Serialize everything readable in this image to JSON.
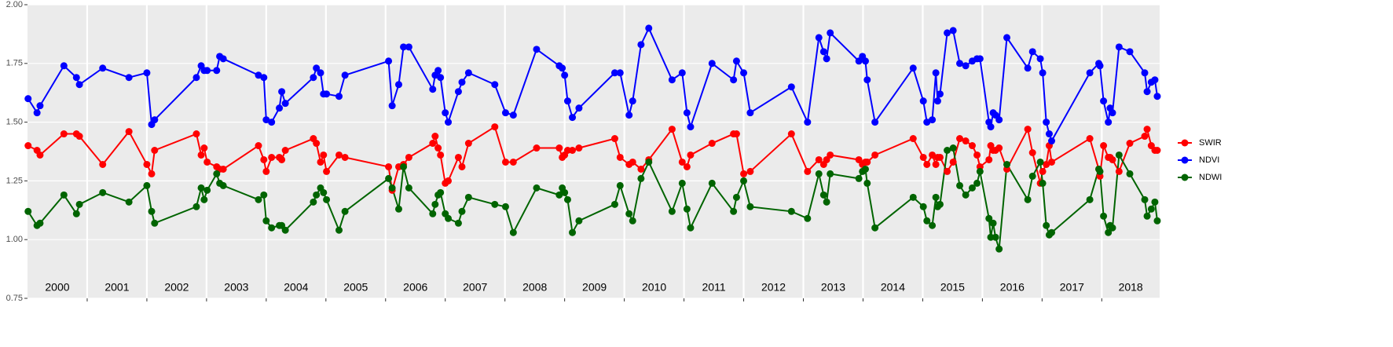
{
  "chart_data": {
    "type": "line",
    "x": [
      2000.01,
      2000.16,
      2000.21,
      2000.61,
      2000.82,
      2000.87,
      2001.26,
      2001.7,
      2002.0,
      2002.08,
      2002.13,
      2002.83,
      2002.91,
      2002.96,
      2003.01,
      2003.17,
      2003.22,
      2003.28,
      2003.87,
      2003.96,
      2004.0,
      2004.09,
      2004.22,
      2004.26,
      2004.32,
      2004.79,
      2004.84,
      2004.91,
      2004.96,
      2005.01,
      2005.22,
      2005.32,
      2006.05,
      2006.11,
      2006.22,
      2006.3,
      2006.39,
      2006.79,
      2006.83,
      2006.88,
      2006.92,
      2007.0,
      2007.05,
      2007.22,
      2007.28,
      2007.39,
      2007.83,
      2008.01,
      2008.14,
      2008.53,
      2008.91,
      2008.96,
      2009.0,
      2009.05,
      2009.13,
      2009.24,
      2009.84,
      2009.93,
      2010.08,
      2010.14,
      2010.28,
      2010.41,
      2010.8,
      2010.97,
      2011.05,
      2011.11,
      2011.47,
      2011.83,
      2011.88,
      2012.0,
      2012.11,
      2012.8,
      2013.07,
      2013.26,
      2013.34,
      2013.39,
      2013.45,
      2013.93,
      2013.99,
      2014.04,
      2014.07,
      2014.2,
      2014.84,
      2015.01,
      2015.07,
      2015.16,
      2015.22,
      2015.25,
      2015.29,
      2015.41,
      2015.51,
      2015.62,
      2015.72,
      2015.83,
      2015.91,
      2015.96,
      2016.11,
      2016.14,
      2016.18,
      2016.22,
      2016.28,
      2016.41,
      2016.76,
      2016.84,
      2016.97,
      2017.01,
      2017.07,
      2017.12,
      2017.16,
      2017.8,
      2017.95,
      2017.97,
      2018.03,
      2018.11,
      2018.14,
      2018.18,
      2018.29,
      2018.47,
      2018.72,
      2018.76,
      2018.83,
      2018.89,
      2018.93
    ],
    "series": [
      {
        "name": "SWIR",
        "color": "#ff0000",
        "values": [
          1.4,
          1.38,
          1.36,
          1.45,
          1.45,
          1.44,
          1.32,
          1.46,
          1.32,
          1.28,
          1.38,
          1.45,
          1.36,
          1.39,
          1.33,
          1.31,
          1.3,
          1.3,
          1.4,
          1.34,
          1.29,
          1.35,
          1.35,
          1.34,
          1.38,
          1.43,
          1.41,
          1.33,
          1.36,
          1.29,
          1.36,
          1.35,
          1.31,
          1.21,
          1.31,
          1.32,
          1.35,
          1.41,
          1.44,
          1.39,
          1.36,
          1.24,
          1.25,
          1.35,
          1.31,
          1.41,
          1.48,
          1.33,
          1.33,
          1.39,
          1.39,
          1.35,
          1.36,
          1.38,
          1.38,
          1.39,
          1.43,
          1.35,
          1.32,
          1.33,
          1.3,
          1.34,
          1.47,
          1.33,
          1.31,
          1.36,
          1.41,
          1.45,
          1.45,
          1.28,
          1.29,
          1.45,
          1.29,
          1.34,
          1.32,
          1.34,
          1.36,
          1.34,
          1.32,
          1.33,
          1.33,
          1.36,
          1.43,
          1.35,
          1.32,
          1.36,
          1.32,
          1.35,
          1.35,
          1.29,
          1.33,
          1.43,
          1.42,
          1.4,
          1.36,
          1.31,
          1.34,
          1.4,
          1.38,
          1.38,
          1.39,
          1.3,
          1.47,
          1.37,
          1.24,
          1.29,
          1.32,
          1.4,
          1.33,
          1.43,
          1.3,
          1.27,
          1.4,
          1.35,
          1.35,
          1.34,
          1.29,
          1.41,
          1.44,
          1.47,
          1.4,
          1.38,
          1.38
        ]
      },
      {
        "name": "NDVI",
        "color": "#0000ff",
        "values": [
          1.6,
          1.54,
          1.57,
          1.74,
          1.69,
          1.66,
          1.73,
          1.69,
          1.71,
          1.49,
          1.51,
          1.69,
          1.74,
          1.72,
          1.72,
          1.72,
          1.78,
          1.77,
          1.7,
          1.69,
          1.51,
          1.5,
          1.56,
          1.63,
          1.58,
          1.69,
          1.73,
          1.71,
          1.62,
          1.62,
          1.61,
          1.7,
          1.76,
          1.57,
          1.66,
          1.82,
          1.82,
          1.64,
          1.7,
          1.72,
          1.69,
          1.54,
          1.5,
          1.63,
          1.67,
          1.71,
          1.66,
          1.54,
          1.53,
          1.81,
          1.74,
          1.73,
          1.7,
          1.59,
          1.52,
          1.56,
          1.71,
          1.71,
          1.53,
          1.59,
          1.83,
          1.9,
          1.68,
          1.71,
          1.54,
          1.48,
          1.75,
          1.68,
          1.76,
          1.71,
          1.54,
          1.65,
          1.5,
          1.86,
          1.8,
          1.77,
          1.88,
          1.76,
          1.78,
          1.76,
          1.68,
          1.5,
          1.73,
          1.59,
          1.5,
          1.51,
          1.71,
          1.59,
          1.62,
          1.88,
          1.89,
          1.75,
          1.74,
          1.76,
          1.77,
          1.77,
          1.5,
          1.48,
          1.54,
          1.53,
          1.51,
          1.86,
          1.73,
          1.8,
          1.77,
          1.71,
          1.5,
          1.45,
          1.42,
          1.71,
          1.75,
          1.74,
          1.59,
          1.5,
          1.56,
          1.54,
          1.82,
          1.8,
          1.71,
          1.63,
          1.67,
          1.68,
          1.61
        ]
      },
      {
        "name": "NDWI",
        "color": "#006400",
        "values": [
          1.12,
          1.06,
          1.07,
          1.19,
          1.11,
          1.15,
          1.2,
          1.16,
          1.23,
          1.12,
          1.07,
          1.14,
          1.22,
          1.17,
          1.21,
          1.28,
          1.24,
          1.23,
          1.17,
          1.19,
          1.08,
          1.05,
          1.06,
          1.06,
          1.04,
          1.16,
          1.19,
          1.22,
          1.2,
          1.17,
          1.04,
          1.12,
          1.26,
          1.22,
          1.13,
          1.31,
          1.22,
          1.11,
          1.15,
          1.19,
          1.2,
          1.11,
          1.09,
          1.07,
          1.12,
          1.18,
          1.15,
          1.14,
          1.03,
          1.22,
          1.19,
          1.22,
          1.2,
          1.17,
          1.03,
          1.08,
          1.15,
          1.23,
          1.11,
          1.08,
          1.26,
          1.33,
          1.12,
          1.24,
          1.13,
          1.05,
          1.24,
          1.12,
          1.18,
          1.25,
          1.14,
          1.12,
          1.09,
          1.28,
          1.19,
          1.16,
          1.28,
          1.26,
          1.29,
          1.3,
          1.24,
          1.05,
          1.18,
          1.14,
          1.08,
          1.06,
          1.18,
          1.14,
          1.15,
          1.38,
          1.39,
          1.23,
          1.19,
          1.22,
          1.24,
          1.29,
          1.09,
          1.01,
          1.07,
          1.01,
          0.96,
          1.32,
          1.17,
          1.27,
          1.33,
          1.24,
          1.06,
          1.02,
          1.03,
          1.17,
          1.3,
          1.29,
          1.1,
          1.03,
          1.06,
          1.05,
          1.36,
          1.28,
          1.17,
          1.1,
          1.13,
          1.16,
          1.08
        ]
      }
    ],
    "xlim": [
      2000,
      2018.97
    ],
    "xticks": [
      2001,
      2002,
      2003,
      2004,
      2005,
      2006,
      2007,
      2008,
      2009,
      2010,
      2011,
      2012,
      2013,
      2014,
      2015,
      2016,
      2017,
      2018
    ],
    "year_labels": [
      "2000",
      "2001",
      "2002",
      "2003",
      "2004",
      "2005",
      "2006",
      "2007",
      "2008",
      "2009",
      "2010",
      "2011",
      "2012",
      "2013",
      "2014",
      "2015",
      "2016",
      "2017",
      "2018"
    ],
    "ylim": [
      0.75,
      2.0
    ],
    "yticks": [
      0.75,
      {
        "value": 1.0,
        "label": "1.00"
      },
      1.25,
      {
        "value": 1.5,
        "label": "1.50"
      },
      1.75,
      {
        "value": 2.0,
        "label": "2.00"
      }
    ],
    "grid": true,
    "legend": "right"
  }
}
